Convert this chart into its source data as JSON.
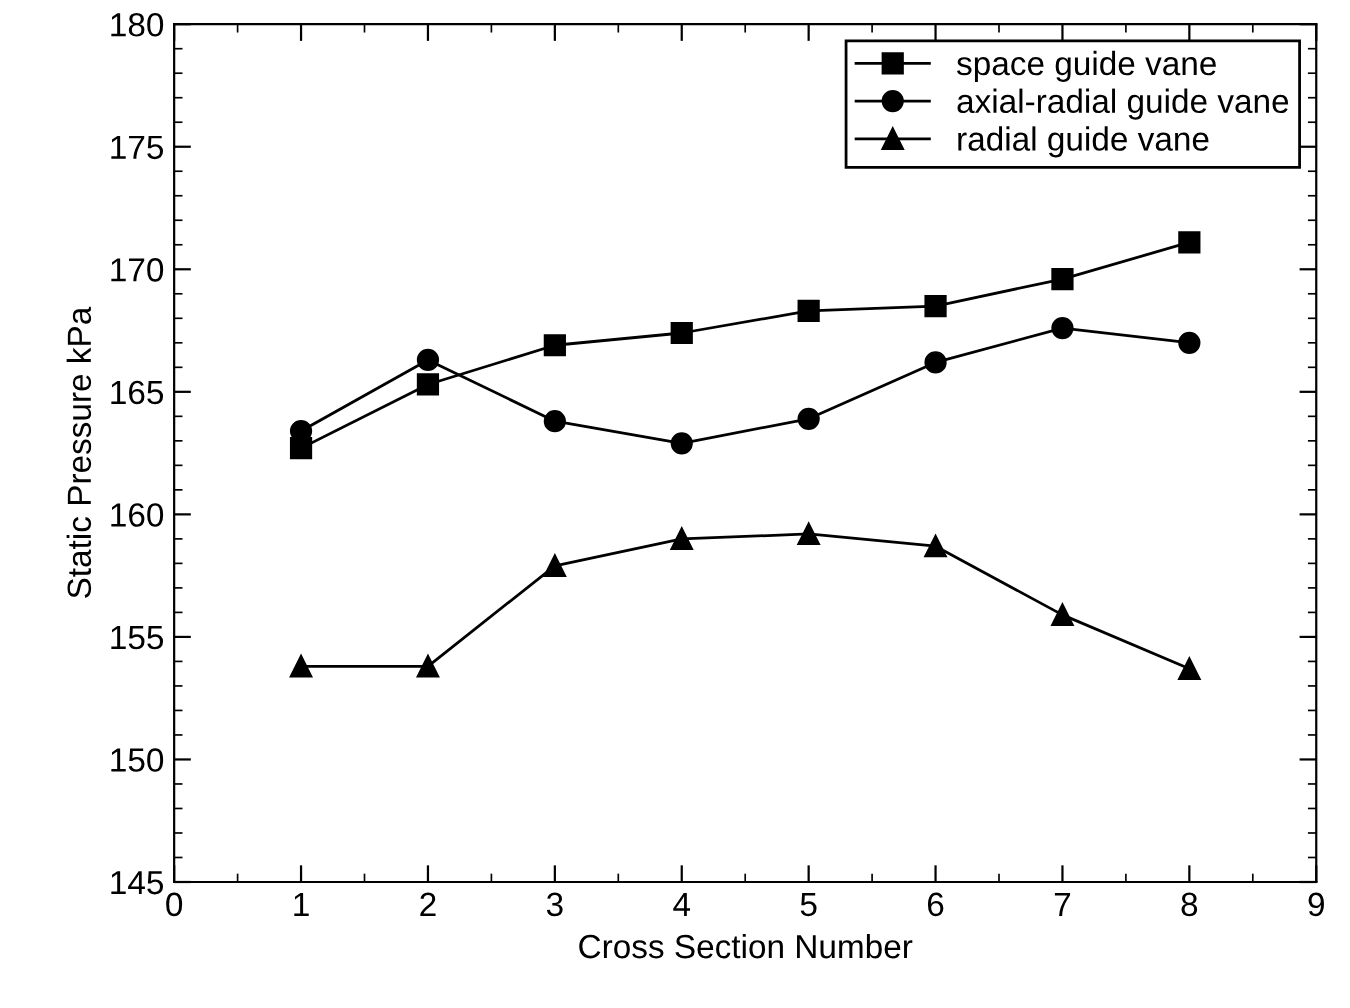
{
  "chart_data": {
    "type": "line",
    "xlabel": "Cross Section Number",
    "ylabel": "Static Pressure kPa",
    "x": [
      1,
      2,
      3,
      4,
      5,
      6,
      7,
      8
    ],
    "series": [
      {
        "name": "space guide vane",
        "color": "#000000",
        "marker": "square",
        "values": [
          162.7,
          165.3,
          166.9,
          167.4,
          168.3,
          168.5,
          169.6,
          171.1
        ]
      },
      {
        "name": "axial-radial guide vane",
        "color": "#000000",
        "marker": "circle",
        "values": [
          163.4,
          166.3,
          163.8,
          162.9,
          163.9,
          166.2,
          167.6,
          167.0
        ]
      },
      {
        "name": "radial guide vane",
        "color": "#000000",
        "marker": "triangle",
        "values": [
          153.8,
          153.8,
          157.9,
          159.0,
          159.2,
          158.7,
          155.9,
          153.7
        ]
      }
    ],
    "xlim": [
      0,
      9
    ],
    "xticks": [
      0,
      1,
      2,
      3,
      4,
      5,
      6,
      7,
      8,
      9
    ],
    "ylim": [
      145,
      180
    ],
    "yticks": [
      145,
      150,
      155,
      160,
      165,
      170,
      175,
      180
    ],
    "grid": false,
    "legend": "top right",
    "line_style": "solid"
  }
}
